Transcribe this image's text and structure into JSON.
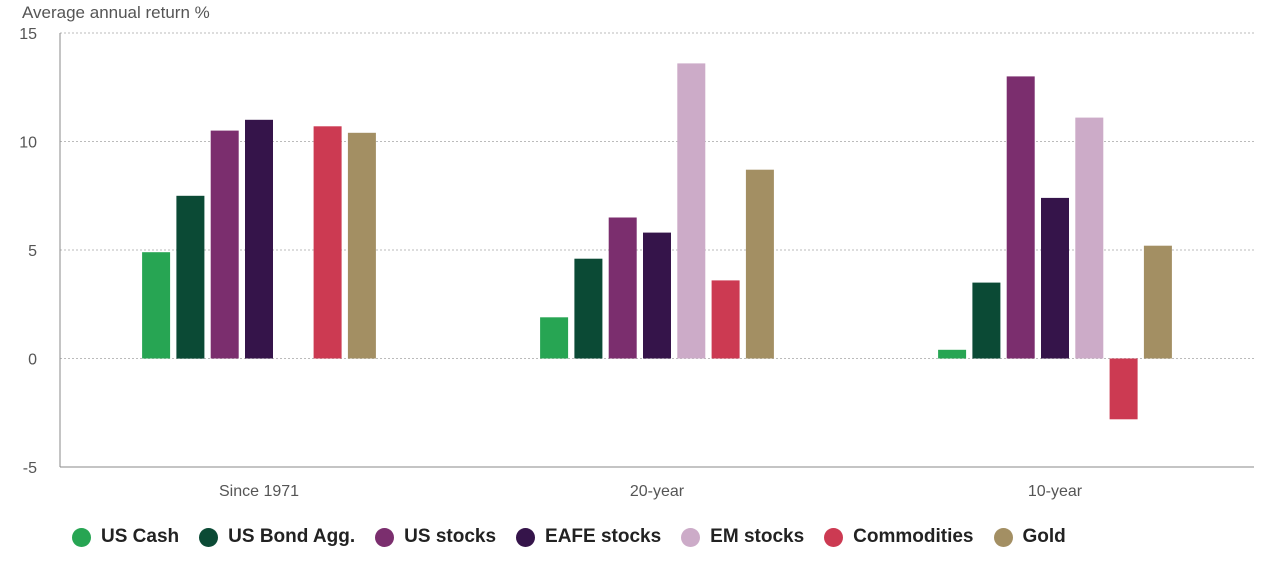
{
  "chart_data": {
    "type": "bar",
    "ylabel": "Average annual return %",
    "ylim": [
      -5,
      15
    ],
    "yticks": [
      -5,
      0,
      5,
      10,
      15
    ],
    "grid": true,
    "legend_position": "bottom",
    "categories": [
      "Since 1971",
      "20-year",
      "10-year"
    ],
    "series": [
      {
        "name": "US Cash",
        "color": "#27a553",
        "values": [
          4.9,
          1.9,
          0.4
        ]
      },
      {
        "name": "US Bond Agg.",
        "color": "#0b4a35",
        "values": [
          7.5,
          4.6,
          3.5
        ]
      },
      {
        "name": "US stocks",
        "color": "#7b2e6e",
        "values": [
          10.5,
          6.5,
          13.0
        ]
      },
      {
        "name": "EAFE stocks",
        "color": "#35144a",
        "values": [
          11.0,
          5.8,
          7.4
        ]
      },
      {
        "name": "EM stocks",
        "color": "#ccabc8",
        "values": [
          null,
          13.6,
          11.1
        ]
      },
      {
        "name": "Commodities",
        "color": "#cc3a52",
        "values": [
          10.7,
          3.6,
          -2.8
        ]
      },
      {
        "name": "Gold",
        "color": "#a38f63",
        "values": [
          10.4,
          8.7,
          5.2
        ]
      }
    ]
  }
}
